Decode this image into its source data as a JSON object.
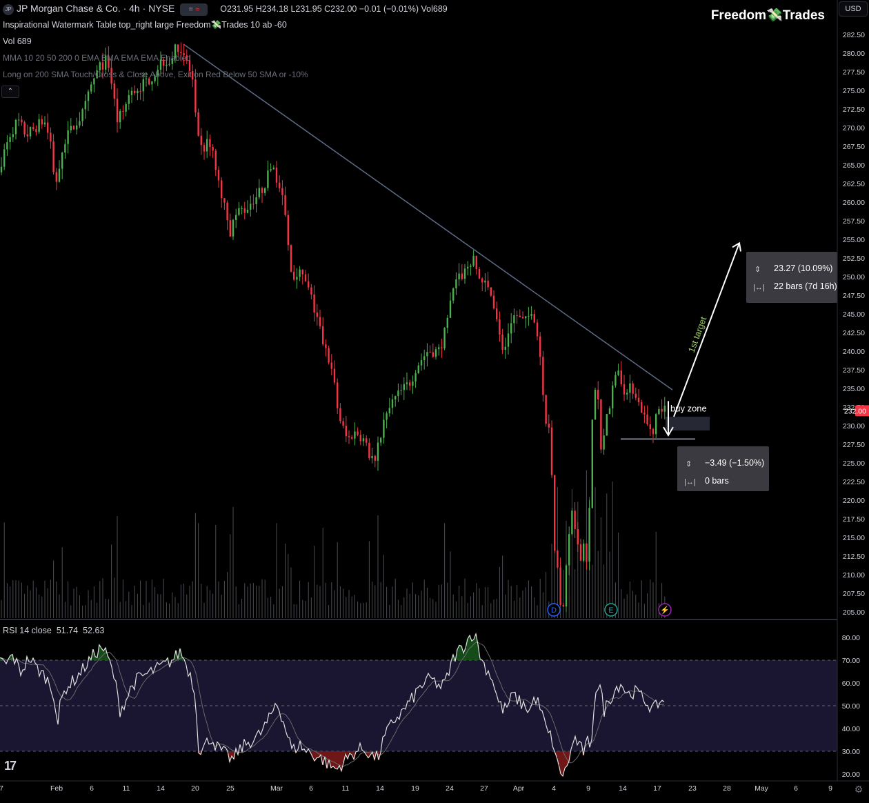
{
  "header": {
    "symbol_badge": "JP",
    "instrument": "JP Morgan Chase & Co. · 4h · NYSE",
    "toggle_a": "=",
    "toggle_b": "≈",
    "ohlc": "O231.95  H234.18  L231.95  C232.00  −0.01 (−0.01%)  Vol689",
    "indicator_watermark": "Inspirational Watermark Table top_right large Freedom💸Trades 10 ab -60",
    "volume_label": "Vol  689",
    "ma_label": "MMA 10 20 50 200 0 EMA EMA EMA EMA Enabled",
    "strategy_label": "Long on 200 SMA Touch/Cross & Close Above, Exit on Red Below 50 SMA or -10%",
    "collapse": "⌃"
  },
  "brand": {
    "text_a": "Freedom",
    "leaf": "💸",
    "text_b": "Trades"
  },
  "currency": "USD",
  "colors": {
    "up": "#26a69a",
    "down": "#ef5350",
    "candle_up": "#4caf50",
    "candle_down": "#f23645",
    "trendline": "#5d6b88",
    "rsi_line": "#e0e0e0",
    "rsi_ma": "#6a6a6a",
    "rsi_band": "#1a1530",
    "price_tag": "#f23645",
    "annotation": "#ffffff",
    "target_label": "#9ccc65"
  },
  "chart_data": [
    {
      "type": "candlestick",
      "title": "JP Morgan Chase & Co. · 4h · NYSE",
      "ylim": [
        204,
        284
      ],
      "y_ticks": [
        "282.50",
        "280.00",
        "277.50",
        "275.00",
        "272.50",
        "270.00",
        "267.50",
        "265.00",
        "262.50",
        "260.00",
        "257.50",
        "255.00",
        "252.50",
        "250.00",
        "247.50",
        "245.00",
        "242.50",
        "240.00",
        "237.50",
        "235.00",
        "232.50",
        "230.00",
        "227.50",
        "225.00",
        "222.50",
        "220.00",
        "217.50",
        "215.00",
        "212.50",
        "210.00",
        "207.50",
        "205.00"
      ],
      "x_ticks": [
        "7",
        "Feb",
        "6",
        "11",
        "14",
        "20",
        "25",
        "Mar",
        "6",
        "11",
        "14",
        "19",
        "24",
        "27",
        "Apr",
        "4",
        "9",
        "14",
        "17",
        "23",
        "28",
        "May",
        "6",
        "9"
      ],
      "last_price": "232.00",
      "path": [
        [
          0,
          264
        ],
        [
          8,
          266
        ],
        [
          18,
          269
        ],
        [
          30,
          271
        ],
        [
          42,
          269
        ],
        [
          55,
          270
        ],
        [
          68,
          271
        ],
        [
          78,
          268
        ],
        [
          84,
          262
        ],
        [
          88,
          264
        ],
        [
          96,
          268
        ],
        [
          110,
          270
        ],
        [
          125,
          272
        ],
        [
          138,
          276
        ],
        [
          148,
          278
        ],
        [
          158,
          279
        ],
        [
          166,
          276
        ],
        [
          174,
          271
        ],
        [
          182,
          272
        ],
        [
          190,
          274
        ],
        [
          200,
          275
        ],
        [
          214,
          276
        ],
        [
          226,
          277
        ],
        [
          238,
          279
        ],
        [
          250,
          279
        ],
        [
          262,
          281
        ],
        [
          270,
          280
        ],
        [
          278,
          278
        ],
        [
          284,
          276
        ],
        [
          288,
          271
        ],
        [
          292,
          268
        ],
        [
          298,
          267
        ],
        [
          306,
          268
        ],
        [
          314,
          266
        ],
        [
          322,
          262
        ],
        [
          330,
          260
        ],
        [
          338,
          256
        ],
        [
          345,
          258
        ],
        [
          352,
          259
        ],
        [
          360,
          259
        ],
        [
          368,
          260
        ],
        [
          378,
          261
        ],
        [
          386,
          262
        ],
        [
          394,
          264
        ],
        [
          400,
          265
        ],
        [
          406,
          263
        ],
        [
          412,
          261
        ],
        [
          418,
          258
        ],
        [
          424,
          252
        ],
        [
          430,
          250
        ],
        [
          436,
          251
        ],
        [
          442,
          250
        ],
        [
          448,
          249
        ],
        [
          456,
          247
        ],
        [
          464,
          244
        ],
        [
          470,
          242
        ],
        [
          476,
          240
        ],
        [
          482,
          239
        ],
        [
          488,
          236
        ],
        [
          494,
          232
        ],
        [
          500,
          230
        ],
        [
          508,
          228
        ],
        [
          516,
          229
        ],
        [
          524,
          229
        ],
        [
          532,
          228
        ],
        [
          540,
          226
        ],
        [
          548,
          225
        ],
        [
          556,
          229
        ],
        [
          564,
          231
        ],
        [
          572,
          233
        ],
        [
          580,
          234
        ],
        [
          590,
          235
        ],
        [
          600,
          236
        ],
        [
          608,
          238
        ],
        [
          616,
          239
        ],
        [
          624,
          240
        ],
        [
          632,
          240
        ],
        [
          640,
          240
        ],
        [
          648,
          242
        ],
        [
          656,
          246
        ],
        [
          664,
          249
        ],
        [
          672,
          250
        ],
        [
          680,
          251
        ],
        [
          686,
          252
        ],
        [
          692,
          252
        ],
        [
          698,
          250
        ],
        [
          706,
          249
        ],
        [
          714,
          248
        ],
        [
          722,
          246
        ],
        [
          730,
          241
        ],
        [
          736,
          240
        ],
        [
          744,
          244
        ],
        [
          752,
          245
        ],
        [
          760,
          244
        ],
        [
          768,
          244
        ],
        [
          776,
          246
        ],
        [
          782,
          243
        ],
        [
          788,
          239
        ],
        [
          794,
          231
        ],
        [
          800,
          229
        ],
        [
          804,
          224
        ],
        [
          808,
          214
        ],
        [
          812,
          211
        ],
        [
          816,
          206
        ],
        [
          820,
          205
        ],
        [
          824,
          209
        ],
        [
          828,
          214
        ],
        [
          834,
          219
        ],
        [
          840,
          214
        ],
        [
          846,
          212
        ],
        [
          852,
          215
        ],
        [
          856,
          211
        ],
        [
          860,
          222
        ],
        [
          864,
          234
        ],
        [
          870,
          235
        ],
        [
          876,
          226
        ],
        [
          882,
          230
        ],
        [
          888,
          233
        ],
        [
          894,
          236
        ],
        [
          900,
          238
        ],
        [
          906,
          236
        ],
        [
          912,
          234
        ],
        [
          918,
          235
        ],
        [
          924,
          235
        ],
        [
          930,
          233
        ],
        [
          936,
          232
        ],
        [
          942,
          230
        ],
        [
          946,
          230
        ],
        [
          950,
          229
        ],
        [
          954,
          231
        ],
        [
          958,
          232
        ],
        [
          964,
          232
        ]
      ],
      "volume_scale": [
        0,
        1
      ]
    },
    {
      "type": "line",
      "title": "RSI 14 close",
      "series": [
        {
          "name": "RSI",
          "last": "51.74"
        },
        {
          "name": "RSI-based MA",
          "last": "52.63"
        }
      ],
      "ylim": [
        18,
        84
      ],
      "bands": [
        30,
        50,
        70
      ],
      "y_ticks": [
        "80.00",
        "70.00",
        "60.00",
        "50.00",
        "40.00",
        "30.00",
        "20.00"
      ],
      "path": [
        [
          0,
          70
        ],
        [
          8,
          68
        ],
        [
          18,
          72
        ],
        [
          30,
          65
        ],
        [
          42,
          71
        ],
        [
          55,
          66
        ],
        [
          68,
          62
        ],
        [
          78,
          55
        ],
        [
          84,
          42
        ],
        [
          88,
          52
        ],
        [
          96,
          58
        ],
        [
          110,
          62
        ],
        [
          125,
          68
        ],
        [
          138,
          73
        ],
        [
          148,
          76
        ],
        [
          158,
          70
        ],
        [
          166,
          62
        ],
        [
          174,
          48
        ],
        [
          182,
          52
        ],
        [
          190,
          58
        ],
        [
          200,
          62
        ],
        [
          214,
          64
        ],
        [
          226,
          66
        ],
        [
          238,
          68
        ],
        [
          250,
          70
        ],
        [
          262,
          74
        ],
        [
          270,
          68
        ],
        [
          278,
          62
        ],
        [
          284,
          52
        ],
        [
          288,
          32
        ],
        [
          292,
          30
        ],
        [
          298,
          33
        ],
        [
          306,
          36
        ],
        [
          314,
          32
        ],
        [
          322,
          30
        ],
        [
          330,
          28
        ],
        [
          338,
          26
        ],
        [
          345,
          30
        ],
        [
          352,
          32
        ],
        [
          360,
          34
        ],
        [
          368,
          35
        ],
        [
          378,
          38
        ],
        [
          386,
          42
        ],
        [
          394,
          46
        ],
        [
          400,
          52
        ],
        [
          406,
          48
        ],
        [
          412,
          42
        ],
        [
          418,
          36
        ],
        [
          424,
          30
        ],
        [
          430,
          32
        ],
        [
          436,
          33
        ],
        [
          442,
          30
        ],
        [
          448,
          30
        ],
        [
          456,
          28
        ],
        [
          464,
          27
        ],
        [
          470,
          26
        ],
        [
          476,
          24
        ],
        [
          482,
          23
        ],
        [
          488,
          22
        ],
        [
          494,
          24
        ],
        [
          500,
          26
        ],
        [
          508,
          28
        ],
        [
          516,
          30
        ],
        [
          524,
          31
        ],
        [
          532,
          30
        ],
        [
          540,
          28
        ],
        [
          548,
          27
        ],
        [
          556,
          35
        ],
        [
          564,
          40
        ],
        [
          572,
          44
        ],
        [
          580,
          46
        ],
        [
          590,
          50
        ],
        [
          600,
          54
        ],
        [
          608,
          58
        ],
        [
          616,
          60
        ],
        [
          624,
          62
        ],
        [
          632,
          60
        ],
        [
          640,
          58
        ],
        [
          648,
          62
        ],
        [
          656,
          70
        ],
        [
          664,
          74
        ],
        [
          672,
          76
        ],
        [
          680,
          80
        ],
        [
          686,
          82
        ],
        [
          692,
          78
        ],
        [
          698,
          70
        ],
        [
          706,
          66
        ],
        [
          714,
          62
        ],
        [
          722,
          52
        ],
        [
          730,
          48
        ],
        [
          736,
          50
        ],
        [
          744,
          55
        ],
        [
          752,
          52
        ],
        [
          760,
          50
        ],
        [
          768,
          48
        ],
        [
          776,
          54
        ],
        [
          782,
          50
        ],
        [
          788,
          44
        ],
        [
          794,
          38
        ],
        [
          800,
          36
        ],
        [
          804,
          30
        ],
        [
          808,
          24
        ],
        [
          812,
          22
        ],
        [
          816,
          20
        ],
        [
          820,
          21
        ],
        [
          824,
          26
        ],
        [
          828,
          30
        ],
        [
          834,
          36
        ],
        [
          840,
          32
        ],
        [
          846,
          30
        ],
        [
          852,
          34
        ],
        [
          856,
          28
        ],
        [
          860,
          46
        ],
        [
          864,
          58
        ],
        [
          870,
          58
        ],
        [
          876,
          48
        ],
        [
          882,
          52
        ],
        [
          888,
          55
        ],
        [
          894,
          58
        ],
        [
          900,
          60
        ],
        [
          906,
          57
        ],
        [
          912,
          55
        ],
        [
          918,
          56
        ],
        [
          924,
          56
        ],
        [
          930,
          54
        ],
        [
          936,
          52
        ],
        [
          942,
          50
        ],
        [
          946,
          48
        ],
        [
          950,
          49
        ],
        [
          954,
          51
        ],
        [
          958,
          52
        ],
        [
          964,
          51.74
        ]
      ]
    }
  ],
  "annotations": {
    "buy_zone": "buy zone",
    "first_target": "1st target",
    "target_box": {
      "change": "23.27 (10.09%)",
      "bars": "22 bars (7d 16h)"
    },
    "stop_box": {
      "change": "−3.49 (−1.50%)",
      "bars": "0 bars"
    }
  },
  "markers": {
    "dividend": "D",
    "earnings": "E",
    "flash": "⚡"
  },
  "footer": {
    "tv_logo": "17"
  }
}
